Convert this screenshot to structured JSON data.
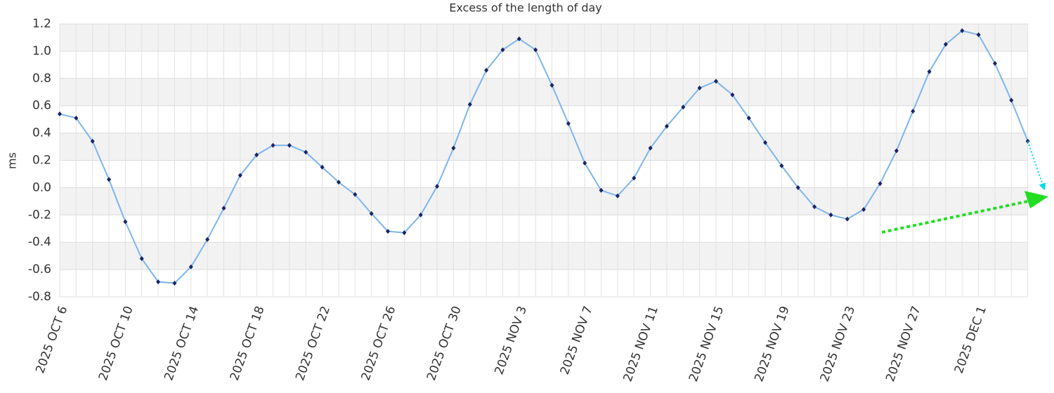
{
  "chart_data": {
    "type": "line",
    "title": "Excess of the length of day",
    "y_label": "ms",
    "categories": [
      "2025 OCT 6",
      null,
      null,
      null,
      "2025 OCT 10",
      null,
      null,
      null,
      "2025 OCT 14",
      null,
      null,
      null,
      "2025 OCT 18",
      null,
      null,
      null,
      "2025 OCT 22",
      null,
      null,
      null,
      "2025 OCT 26",
      null,
      null,
      null,
      "2025 OCT 30",
      null,
      null,
      null,
      "2025 NOV 3",
      null,
      null,
      null,
      "2025 NOV 7",
      null,
      null,
      null,
      "2025 NOV 11",
      null,
      null,
      null,
      "2025 NOV 15",
      null,
      null,
      null,
      "2025 NOV 19",
      null,
      null,
      null,
      "2025 NOV 23",
      null,
      null,
      null,
      "2025 NOV 27",
      null,
      null,
      null,
      "2025 DEC 1",
      null,
      null,
      null,
      null
    ],
    "series": [
      {
        "color": "#7cb5ec",
        "dash": false,
        "markers": true,
        "values": [
          0.54,
          0.51,
          0.34,
          0.06,
          -0.25,
          -0.52,
          -0.69,
          -0.7,
          -0.58,
          -0.38,
          -0.15,
          0.09,
          0.24,
          0.31,
          0.31,
          0.26,
          0.15,
          0.04,
          -0.05,
          -0.19,
          -0.32,
          -0.33,
          -0.2,
          0.01,
          0.29,
          0.61,
          0.86,
          1.01,
          1.09,
          1.01,
          0.75,
          0.47,
          0.18,
          -0.02,
          -0.06,
          0.07,
          0.29,
          0.45,
          0.59,
          0.73,
          0.78,
          0.68,
          0.51,
          0.33,
          0.16,
          0.0,
          -0.14,
          -0.2,
          -0.23,
          -0.16,
          0.03,
          0.27,
          0.56,
          0.85,
          1.05,
          1.15,
          1.12,
          0.91,
          0.64,
          0.34,
          null
        ]
      },
      {
        "color": "#00d8e8",
        "dash": true,
        "markers": false,
        "values": [
          null,
          null,
          null,
          null,
          null,
          null,
          null,
          null,
          null,
          null,
          null,
          null,
          null,
          null,
          null,
          null,
          null,
          null,
          null,
          null,
          null,
          null,
          null,
          null,
          null,
          null,
          null,
          null,
          null,
          null,
          null,
          null,
          null,
          null,
          null,
          null,
          null,
          null,
          null,
          null,
          null,
          null,
          null,
          null,
          null,
          null,
          null,
          null,
          null,
          null,
          null,
          null,
          null,
          null,
          null,
          null,
          null,
          null,
          null,
          0.34,
          -0.01
        ]
      }
    ],
    "ylim": [
      -0.8,
      1.2
    ],
    "yticks": [
      -0.8,
      -0.6,
      -0.4,
      -0.2,
      {
        "value": 0,
        "label": "0.0"
      },
      0.2,
      0.4,
      0.6,
      0.8,
      {
        "value": 1,
        "label": "1.0"
      },
      1.2
    ],
    "grid": true,
    "bands": true
  }
}
